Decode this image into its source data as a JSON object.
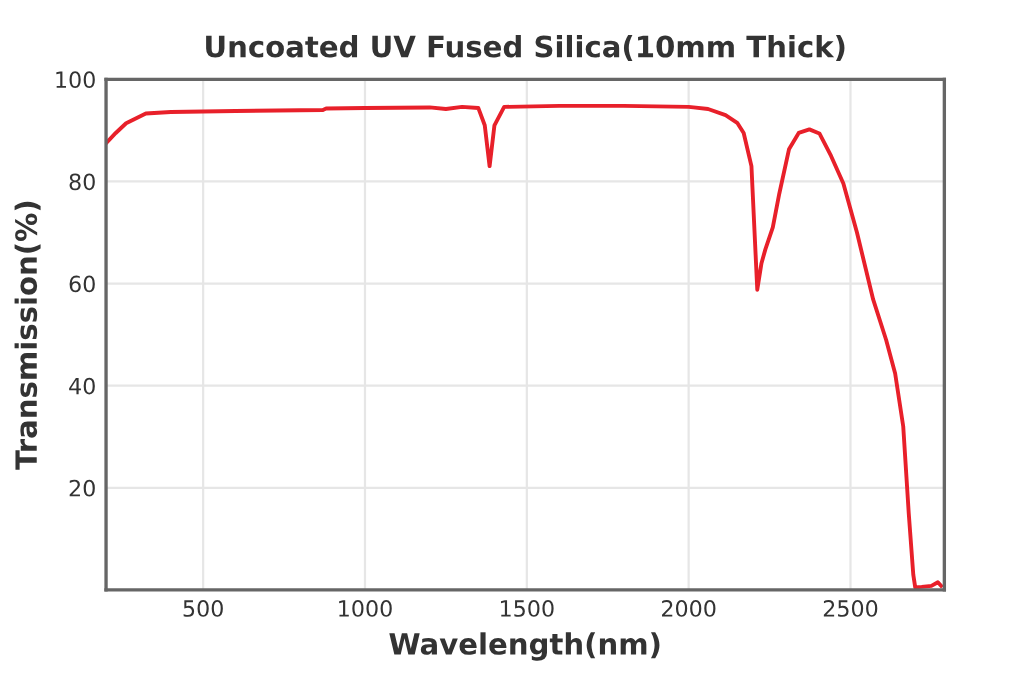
{
  "chart_data": {
    "type": "line",
    "title": "Uncoated UV Fused Silica(10mm Thick)",
    "xlabel": "Wavelength(nm)",
    "ylabel": "Transmission(%)",
    "xlim": [
      200,
      2790
    ],
    "ylim": [
      0,
      100
    ],
    "xticks": [
      500,
      1000,
      1500,
      2000,
      2500
    ],
    "yticks": [
      20,
      40,
      60,
      80,
      100
    ],
    "grid": true,
    "legend": false,
    "marker": "none",
    "line_style": "solid",
    "series": [
      {
        "color": "#e8202a",
        "x": [
          200,
          230,
          262,
          323,
          400,
          600,
          870,
          880,
          1000,
          1200,
          1250,
          1300,
          1350,
          1370,
          1385,
          1400,
          1430,
          1600,
          1800,
          2000,
          2015,
          2060,
          2114,
          2150,
          2170,
          2194,
          2212,
          2225,
          2237,
          2260,
          2280,
          2310,
          2340,
          2373,
          2404,
          2440,
          2478,
          2520,
          2570,
          2610,
          2638,
          2663,
          2680,
          2694,
          2700,
          2720,
          2750,
          2770,
          2780
        ],
        "values": [
          87.5,
          89.5,
          91.4,
          93.3,
          93.6,
          93.8,
          94.0,
          94.3,
          94.4,
          94.5,
          94.2,
          94.6,
          94.4,
          91,
          83,
          91,
          94.6,
          94.8,
          94.8,
          94.6,
          94.5,
          94.2,
          93,
          91.5,
          89.5,
          83,
          58.8,
          64,
          66.7,
          71,
          77.6,
          86.3,
          89.5,
          90.2,
          89.4,
          85,
          79.6,
          70,
          56.9,
          49,
          42.4,
          32,
          15,
          3,
          0.5,
          0.6,
          0.8,
          1.5,
          0.8
        ]
      }
    ]
  }
}
